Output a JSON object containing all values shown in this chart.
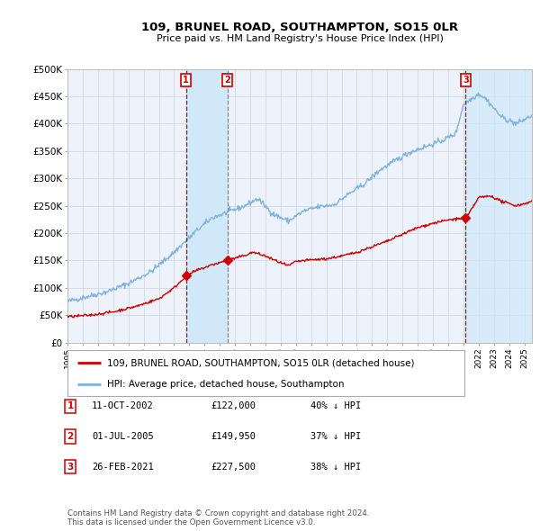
{
  "title": "109, BRUNEL ROAD, SOUTHAMPTON, SO15 0LR",
  "subtitle": "Price paid vs. HM Land Registry's House Price Index (HPI)",
  "background_color": "#ffffff",
  "plot_bg_color": "#eef3fb",
  "grid_color": "#d0d8e8",
  "hpi_color": "#7fb3e0",
  "price_color": "#cc0000",
  "ylim": [
    0,
    500000
  ],
  "yticks": [
    0,
    50000,
    100000,
    150000,
    200000,
    250000,
    300000,
    350000,
    400000,
    450000,
    500000
  ],
  "ytick_labels": [
    "£0",
    "£50K",
    "£100K",
    "£150K",
    "£200K",
    "£250K",
    "£300K",
    "£350K",
    "£400K",
    "£450K",
    "£500K"
  ],
  "transactions": [
    {
      "num": 1,
      "date_label": "11-OCT-2002",
      "date_x": 2002.78,
      "price": 122000,
      "price_str": "£122,000",
      "hpi_pct": "40%",
      "marker_y": 122000
    },
    {
      "num": 2,
      "date_label": "01-JUL-2005",
      "date_x": 2005.5,
      "price": 149950,
      "price_str": "£149,950",
      "hpi_pct": "37%",
      "marker_y": 149950
    },
    {
      "num": 3,
      "date_label": "26-FEB-2021",
      "date_x": 2021.15,
      "price": 227500,
      "price_str": "£227,500",
      "hpi_pct": "38%",
      "marker_y": 227500
    }
  ],
  "legend_entries": [
    "109, BRUNEL ROAD, SOUTHAMPTON, SO15 0LR (detached house)",
    "HPI: Average price, detached house, Southampton"
  ],
  "footer_lines": [
    "Contains HM Land Registry data © Crown copyright and database right 2024.",
    "This data is licensed under the Open Government Licence v3.0."
  ],
  "xmin": 1995.0,
  "xmax": 2025.5,
  "shade1_color": "#d0e8f8",
  "vline1_color": "#cc0000",
  "vline2_color": "#888888"
}
